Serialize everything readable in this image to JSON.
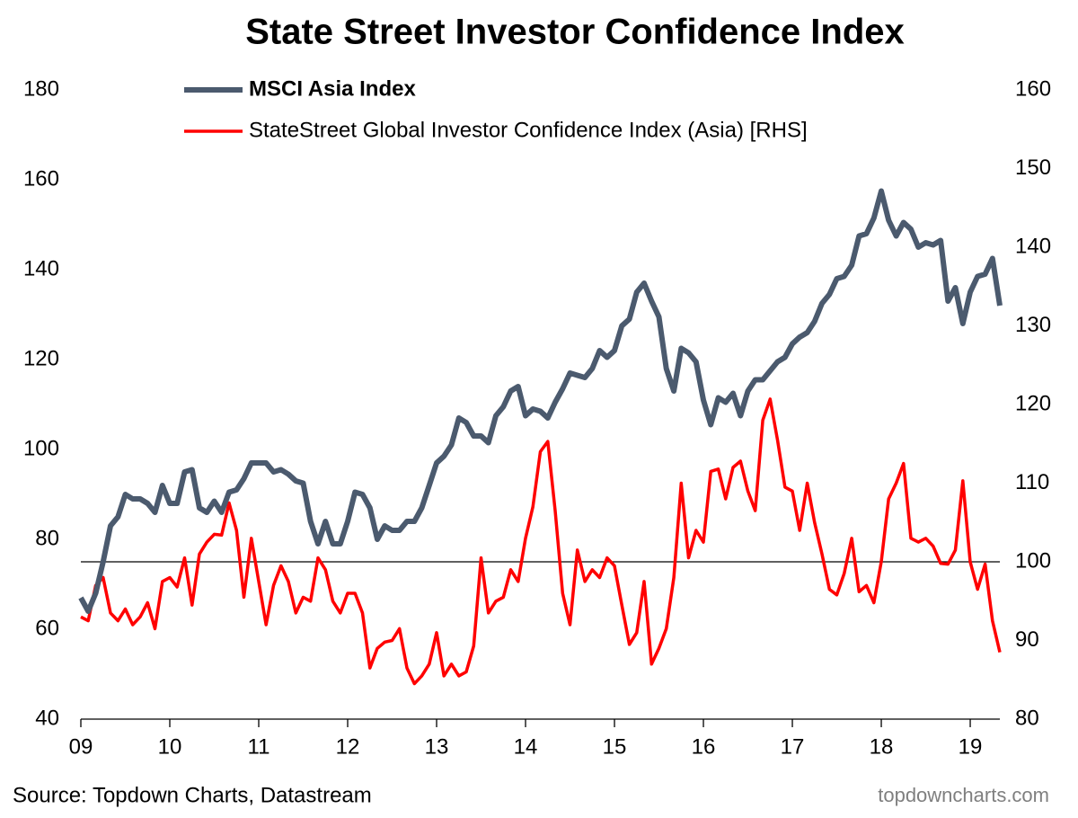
{
  "chart_data": {
    "type": "line",
    "title": "State Street Investor Confidence Index",
    "source": "Source: Topdown Charts, Datastream",
    "watermark": "topdowncharts.com",
    "x": [
      2009,
      2009.083,
      2009.167,
      2009.25,
      2009.333,
      2009.417,
      2009.5,
      2009.583,
      2009.667,
      2009.75,
      2009.833,
      2009.917,
      2010,
      2010.083,
      2010.167,
      2010.25,
      2010.333,
      2010.417,
      2010.5,
      2010.583,
      2010.667,
      2010.75,
      2010.833,
      2010.917,
      2011,
      2011.083,
      2011.167,
      2011.25,
      2011.333,
      2011.417,
      2011.5,
      2011.583,
      2011.667,
      2011.75,
      2011.833,
      2011.917,
      2012,
      2012.083,
      2012.167,
      2012.25,
      2012.333,
      2012.417,
      2012.5,
      2012.583,
      2012.667,
      2012.75,
      2012.833,
      2012.917,
      2013,
      2013.083,
      2013.167,
      2013.25,
      2013.333,
      2013.417,
      2013.5,
      2013.583,
      2013.667,
      2013.75,
      2013.833,
      2013.917,
      2014,
      2014.083,
      2014.167,
      2014.25,
      2014.333,
      2014.417,
      2014.5,
      2014.583,
      2014.667,
      2014.75,
      2014.833,
      2014.917,
      2015,
      2015.083,
      2015.167,
      2015.25,
      2015.333,
      2015.417,
      2015.5,
      2015.583,
      2015.667,
      2015.75,
      2015.833,
      2015.917,
      2016,
      2016.083,
      2016.167,
      2016.25,
      2016.333,
      2016.417,
      2016.5,
      2016.583,
      2016.667,
      2016.75,
      2016.833,
      2016.917,
      2017,
      2017.083,
      2017.167,
      2017.25,
      2017.333,
      2017.417,
      2017.5,
      2017.583,
      2017.667,
      2017.75,
      2017.833,
      2017.917,
      2018,
      2018.083,
      2018.167,
      2018.25,
      2018.333,
      2018.417,
      2018.5,
      2018.583,
      2018.667,
      2018.75,
      2018.833,
      2018.917,
      2019,
      2019.083,
      2019.167,
      2019.25,
      2019.333
    ],
    "series": [
      {
        "name": "MSCI Asia Index",
        "color": "#4b5a6e",
        "axis": "y",
        "values": [
          67,
          64,
          68,
          75,
          83,
          85,
          90,
          89,
          89,
          88,
          86,
          92,
          88,
          88,
          95,
          95.5,
          87,
          86,
          88.5,
          86,
          90.5,
          91,
          93.5,
          97,
          97,
          97,
          95,
          95.5,
          94.5,
          93,
          92.5,
          84,
          79,
          84,
          79,
          79,
          84,
          90.5,
          90,
          87,
          80,
          83,
          82,
          82,
          84,
          84,
          87,
          92,
          97,
          98.5,
          101,
          107,
          106,
          103,
          103,
          101.5,
          107.5,
          109.5,
          113,
          114,
          107.5,
          109,
          108.5,
          107,
          110.5,
          113.5,
          117,
          116.5,
          116,
          118,
          122,
          120.5,
          122,
          127.5,
          129,
          135,
          137,
          133,
          129.5,
          118,
          113,
          122.5,
          121.5,
          119.5,
          111,
          105.5,
          111.5,
          110.5,
          112.5,
          107.5,
          113,
          115.5,
          115.5,
          117.5,
          119.5,
          120.5,
          123.5,
          125,
          126,
          128.5,
          132.5,
          134.5,
          138,
          138.5,
          141,
          147.5,
          148,
          151.5,
          157.5,
          151,
          147.5,
          150.5,
          149,
          145,
          146,
          145.5,
          146.5,
          133,
          136,
          128,
          135,
          138.5,
          139,
          142.5,
          132
        ]
      },
      {
        "name": "StateStreet Global Investor Confidence Index (Asia) [RHS]",
        "color": "#ff0000",
        "axis": "y2",
        "values": [
          93,
          92.5,
          97,
          98,
          93.5,
          92.5,
          94,
          92,
          93,
          94.8,
          91.5,
          97.5,
          98,
          96.8,
          100.5,
          94.5,
          101,
          102.5,
          103.5,
          103.4,
          107.5,
          104,
          95.5,
          103,
          97.5,
          92,
          97,
          99.5,
          97.5,
          93.5,
          95.5,
          95,
          100.5,
          99,
          95,
          93.5,
          96,
          96,
          93.5,
          86.5,
          89,
          89.8,
          90,
          91.5,
          86.5,
          84.5,
          85.5,
          87,
          91,
          85.5,
          87,
          85.5,
          86,
          89.3,
          100.5,
          93.5,
          95,
          95.5,
          99,
          97.5,
          103,
          107,
          114,
          115.3,
          106.5,
          96,
          92,
          101.5,
          97.5,
          99,
          98,
          100.5,
          99.5,
          94.5,
          89.5,
          91,
          97.5,
          87,
          89,
          91.5,
          98,
          110,
          100.5,
          104,
          102.5,
          111.5,
          111.8,
          108,
          112,
          112.8,
          109,
          106.5,
          118,
          120.7,
          115.5,
          109.5,
          109,
          104,
          110,
          105,
          101,
          96.5,
          95.8,
          98.5,
          103,
          96.2,
          97,
          94.8,
          100,
          108,
          110,
          112.5,
          103,
          102.5,
          103,
          102,
          99.8,
          99.7,
          101.5,
          110.3,
          100,
          96.5,
          99.7,
          92.5,
          88.5
        ]
      }
    ],
    "xlim": [
      2009,
      2019.333
    ],
    "xticks": [
      {
        "value": 2009,
        "label": "09"
      },
      {
        "value": 2010,
        "label": "10"
      },
      {
        "value": 2011,
        "label": "11"
      },
      {
        "value": 2012,
        "label": "12"
      },
      {
        "value": 2013,
        "label": "13"
      },
      {
        "value": 2014,
        "label": "14"
      },
      {
        "value": 2015,
        "label": "15"
      },
      {
        "value": 2016,
        "label": "16"
      },
      {
        "value": 2017,
        "label": "17"
      },
      {
        "value": 2018,
        "label": "18"
      },
      {
        "value": 2019,
        "label": "19"
      }
    ],
    "ylim": [
      40,
      180
    ],
    "yticks": [
      40,
      60,
      80,
      100,
      120,
      140,
      160,
      180
    ],
    "y2lim": [
      80,
      160
    ],
    "y2ticks": [
      80,
      90,
      100,
      110,
      120,
      130,
      140,
      150,
      160
    ],
    "reference_line": {
      "value": 100,
      "axis": "y2"
    }
  }
}
